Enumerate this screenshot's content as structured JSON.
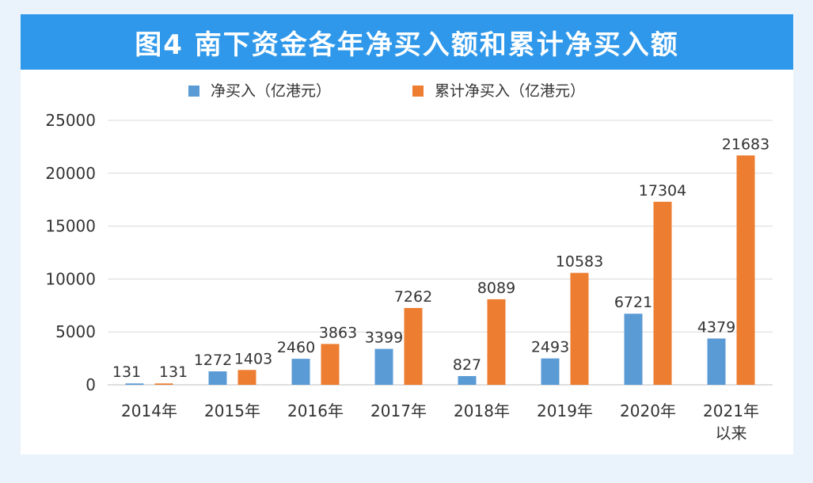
{
  "title": "图4  南下资金各年净买入额和累计净买入额",
  "colors": {
    "title_bg": "#2f98ea",
    "net": "#5b9bd5",
    "cumulative": "#ed7d31"
  },
  "chart_data": {
    "type": "bar",
    "title": "图4  南下资金各年净买入额和累计净买入额",
    "categories": [
      [
        "2014年"
      ],
      [
        "2015年"
      ],
      [
        "2016年"
      ],
      [
        "2017年"
      ],
      [
        "2018年"
      ],
      [
        "2019年"
      ],
      [
        "2020年"
      ],
      [
        "2021年",
        "以来"
      ]
    ],
    "series": [
      {
        "name": "净买入（亿港元）",
        "values": [
          131,
          1272,
          2460,
          3399,
          827,
          2493,
          6721,
          4379
        ]
      },
      {
        "name": "累计净买入（亿港元）",
        "values": [
          131,
          1403,
          3863,
          7262,
          8089,
          10583,
          17304,
          21683
        ]
      }
    ],
    "ylim": [
      0,
      25000
    ],
    "yticks": [
      0,
      5000,
      10000,
      15000,
      20000,
      25000
    ],
    "grid": true,
    "legend": "top-center"
  }
}
